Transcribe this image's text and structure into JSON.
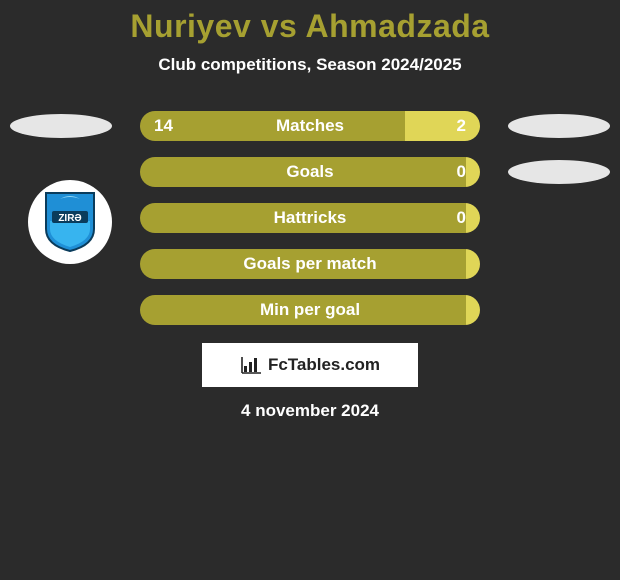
{
  "header": {
    "title_left": "Nuriyev",
    "title_vs": "vs",
    "title_right": "Ahmadzada",
    "title_color": "#a6a031",
    "subtitle": "Club competitions, Season 2024/2025"
  },
  "badge": {
    "name": "zira-club-badge",
    "bg": "#ffffff",
    "primary": "#1f8fd6",
    "dark": "#0a3c5c",
    "text": "ZIRƏ"
  },
  "ellipse_color": "#e6e6e6",
  "bars": {
    "track_width": 340,
    "height": 30,
    "left_color": "#a6a031",
    "right_color": "#e0d657",
    "label_fontsize": 17,
    "value_fontsize": 17,
    "rows": [
      {
        "label": "Matches",
        "left_val": "14",
        "right_val": "2",
        "left_pct": 78,
        "show_left_ellipse": true,
        "show_right_ellipse": true
      },
      {
        "label": "Goals",
        "left_val": "",
        "right_val": "0",
        "left_pct": 97,
        "show_left_ellipse": false,
        "show_right_ellipse": true
      },
      {
        "label": "Hattricks",
        "left_val": "",
        "right_val": "0",
        "left_pct": 97,
        "show_left_ellipse": false,
        "show_right_ellipse": false
      },
      {
        "label": "Goals per match",
        "left_val": "",
        "right_val": "",
        "left_pct": 97,
        "show_left_ellipse": false,
        "show_right_ellipse": false
      },
      {
        "label": "Min per goal",
        "left_val": "",
        "right_val": "",
        "left_pct": 97,
        "show_left_ellipse": false,
        "show_right_ellipse": false
      }
    ]
  },
  "footer": {
    "brand": "FcTables.com",
    "date": "4 november 2024",
    "box_bg": "#ffffff",
    "text_color": "#222222"
  }
}
